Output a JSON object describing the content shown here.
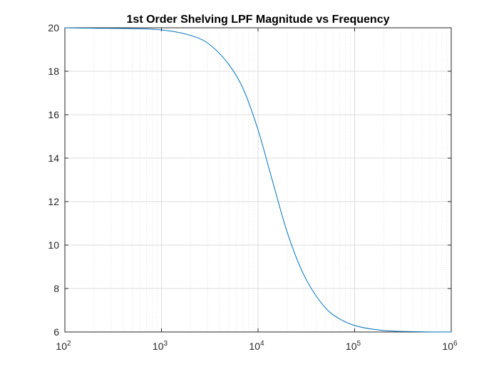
{
  "chart_data": {
    "type": "line",
    "title": "1st Order Shelving LPF Magnitude vs Frequency",
    "xscale": "log",
    "xlim": [
      100,
      1000000
    ],
    "ylim": [
      6,
      20
    ],
    "grid": true,
    "x_ticks": [
      {
        "base": "10",
        "exp": "2"
      },
      {
        "base": "10",
        "exp": "3"
      },
      {
        "base": "10",
        "exp": "4"
      },
      {
        "base": "10",
        "exp": "5"
      },
      {
        "base": "10",
        "exp": "6"
      }
    ],
    "y_ticks": [
      "6",
      "8",
      "10",
      "12",
      "14",
      "16",
      "18",
      "20"
    ],
    "series": [
      {
        "color": "#0072BD",
        "x": [
          100,
          200,
          500,
          1000,
          2000,
          3000,
          5000,
          7000,
          10000,
          14000,
          20000,
          30000,
          50000,
          70000,
          100000,
          200000,
          500000,
          1000000
        ],
        "y": [
          20.0,
          19.98,
          19.96,
          19.9,
          19.65,
          19.3,
          18.3,
          17.2,
          15.3,
          13.0,
          10.6,
          8.6,
          7.1,
          6.6,
          6.3,
          6.07,
          6.01,
          6.0
        ]
      }
    ]
  }
}
